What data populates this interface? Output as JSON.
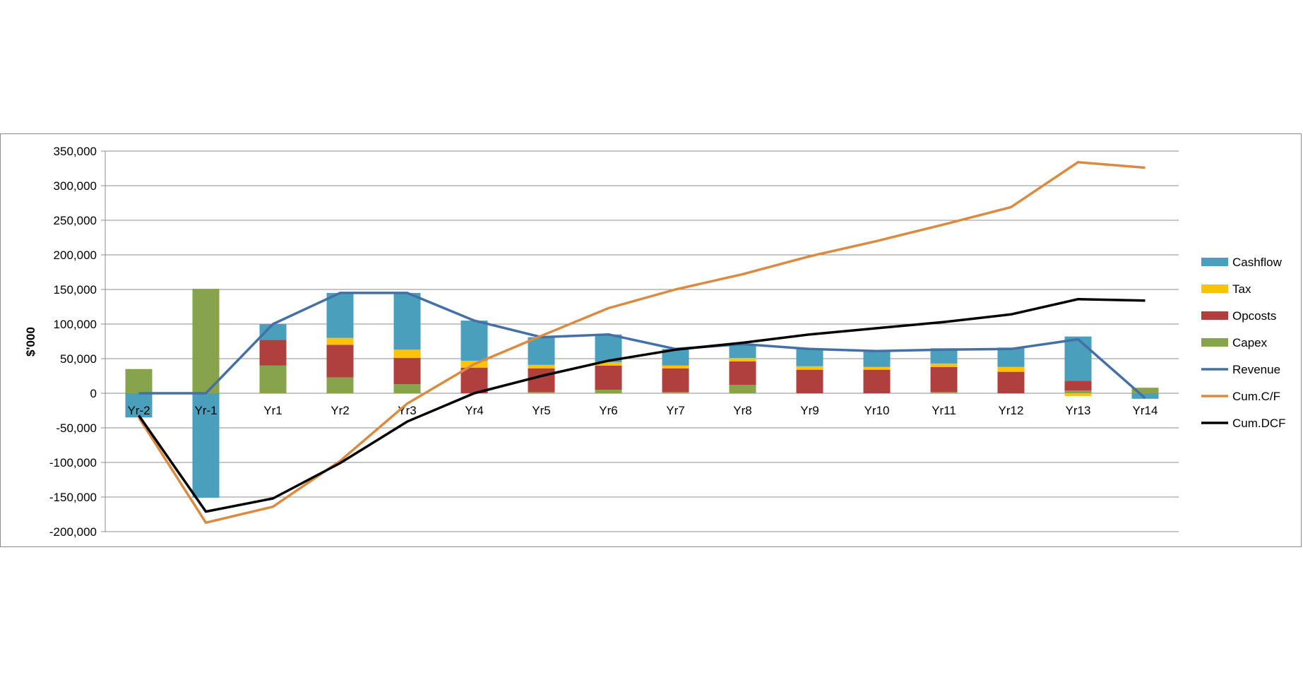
{
  "chart_data": {
    "type": "bar",
    "title": "",
    "xlabel": "",
    "ylabel": "$'000",
    "ylim": [
      -200000,
      350000
    ],
    "yticks": [
      350000,
      300000,
      250000,
      200000,
      150000,
      100000,
      50000,
      0,
      -50000,
      -100000,
      -150000,
      -200000
    ],
    "ytick_labels": [
      "350,000",
      "300,000",
      "250,000",
      "200,000",
      "150,000",
      "100,000",
      "50,000",
      "0",
      "-50,000",
      "-100,000",
      "-150,000",
      "-200,000"
    ],
    "grid": true,
    "legend_position": "right",
    "categories": [
      "Yr-2",
      "Yr-1",
      "Yr1",
      "Yr2",
      "Yr3",
      "Yr4",
      "Yr5",
      "Yr6",
      "Yr7",
      "Yr8",
      "Yr9",
      "Yr10",
      "Yr11",
      "Yr12",
      "Yr13",
      "Yr14"
    ],
    "stack_order": [
      "Capex",
      "Opcosts",
      "Tax",
      "Cashflow"
    ],
    "series": [
      {
        "name": "Cashflow",
        "kind": "bar",
        "color": "#4aa0bc",
        "values": [
          -35000,
          -151000,
          23000,
          65000,
          82000,
          58000,
          40000,
          40000,
          24000,
          20000,
          25000,
          22000,
          22000,
          28000,
          64000,
          -8000
        ]
      },
      {
        "name": "Tax",
        "kind": "bar",
        "color": "#fdc20b",
        "values": [
          0,
          0,
          0,
          10000,
          12000,
          10000,
          5000,
          5000,
          4000,
          5000,
          5000,
          4000,
          5000,
          7000,
          -4000,
          0
        ]
      },
      {
        "name": "Opcosts",
        "kind": "bar",
        "color": "#b0403d",
        "values": [
          0,
          0,
          37000,
          47000,
          38000,
          37000,
          34000,
          35000,
          34000,
          34000,
          34000,
          34000,
          36000,
          31000,
          14000,
          0
        ]
      },
      {
        "name": "Capex",
        "kind": "bar",
        "color": "#87a44d",
        "values": [
          35000,
          151000,
          40000,
          23000,
          13000,
          0,
          2000,
          5000,
          2000,
          12000,
          0,
          0,
          2000,
          0,
          4000,
          8000
        ]
      },
      {
        "name": "Revenue",
        "kind": "line",
        "color": "#4470a6",
        "values": [
          0,
          0,
          100000,
          145000,
          145000,
          105000,
          81000,
          85000,
          64000,
          71000,
          64000,
          61000,
          63000,
          64000,
          78000,
          -7000
        ]
      },
      {
        "name": "Cum.C/F",
        "kind": "line",
        "color": "#db8a41",
        "values": [
          -35000,
          -187000,
          -164000,
          -98000,
          -15000,
          42000,
          83000,
          123000,
          150000,
          172000,
          198000,
          220000,
          244000,
          269000,
          334000,
          326000
        ]
      },
      {
        "name": "Cum.DCF",
        "kind": "line",
        "color": "#000000",
        "values": [
          -32000,
          -171000,
          -152000,
          -101000,
          -41000,
          0,
          25000,
          47000,
          63000,
          73000,
          85000,
          94000,
          103000,
          114000,
          136000,
          134000
        ]
      }
    ]
  }
}
